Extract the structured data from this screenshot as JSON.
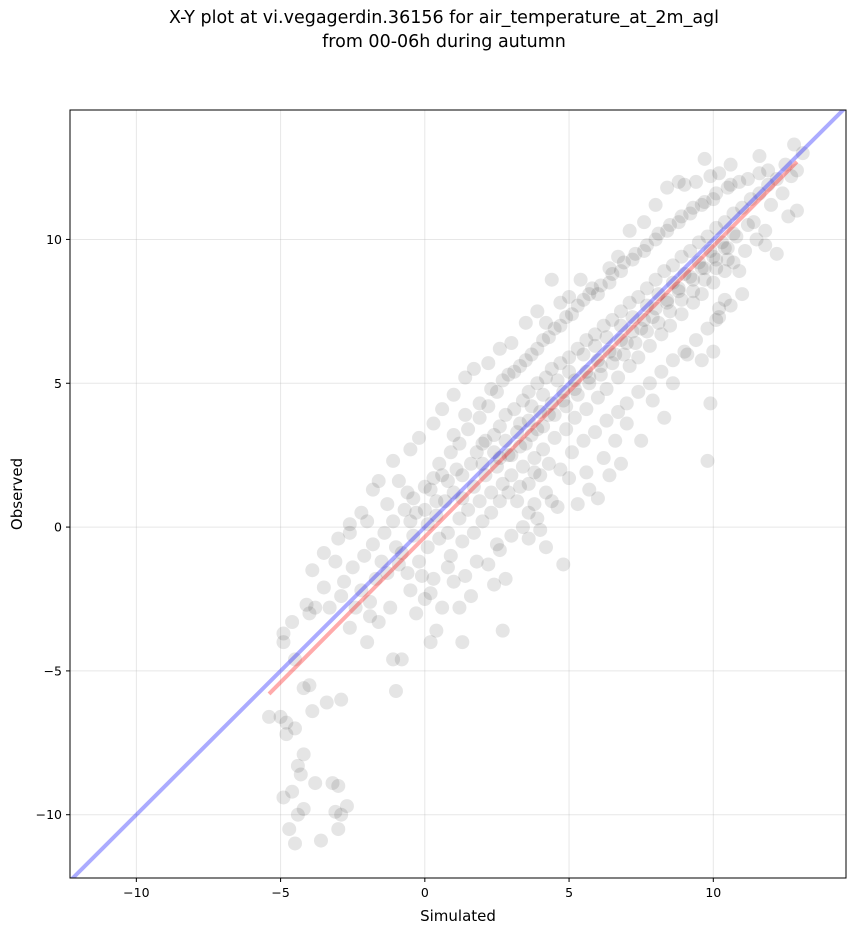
{
  "chart_data": {
    "type": "scatter",
    "title_lines": [
      "X-Y plot at vi.vegagerdin.36156 for air_temperature_at_2m_agl",
      "from 00-06h during autumn"
    ],
    "xlabel": "Simulated",
    "ylabel": "Observed",
    "xlim": [
      -12.3,
      14.6
    ],
    "ylim": [
      -12.2,
      14.5
    ],
    "xticks": [
      -10,
      -5,
      0,
      5,
      10
    ],
    "yticks": [
      -10,
      -5,
      0,
      5,
      10
    ],
    "xtick_labels": [
      "−10",
      "−5",
      "0",
      "5",
      "10"
    ],
    "ytick_labels": [
      "−10",
      "−5",
      "0",
      "5",
      "10"
    ],
    "grid": true,
    "point_color": "#000000",
    "point_alpha": 0.1,
    "reference_line": {
      "color": "#0000ff",
      "alpha": 0.33,
      "slope": 1,
      "intercept": 0
    },
    "fit_line": {
      "color": "#ff0000",
      "alpha": 0.33,
      "x": [
        -5.4,
        12.9
      ],
      "y": [
        -5.8,
        12.7
      ]
    },
    "points": [
      [
        -5.4,
        -6.6
      ],
      [
        -5.0,
        -6.6
      ],
      [
        -4.8,
        -6.8
      ],
      [
        -4.5,
        -7.0
      ],
      [
        -4.8,
        -7.2
      ],
      [
        -4.2,
        -7.9
      ],
      [
        -4.4,
        -8.3
      ],
      [
        -4.3,
        -8.6
      ],
      [
        -4.6,
        -9.2
      ],
      [
        -4.9,
        -9.4
      ],
      [
        -4.2,
        -9.8
      ],
      [
        -4.4,
        -10.0
      ],
      [
        -4.7,
        -10.5
      ],
      [
        -4.5,
        -11.0
      ],
      [
        -3.8,
        -8.9
      ],
      [
        -3.2,
        -8.9
      ],
      [
        -3.0,
        -9.0
      ],
      [
        -3.1,
        -9.9
      ],
      [
        -2.9,
        -10.0
      ],
      [
        -2.7,
        -9.7
      ],
      [
        -3.0,
        -10.5
      ],
      [
        -3.6,
        -10.9
      ],
      [
        -3.9,
        -6.4
      ],
      [
        -3.4,
        -6.1
      ],
      [
        -2.9,
        -6.0
      ],
      [
        -4.0,
        -5.5
      ],
      [
        -4.2,
        -5.6
      ],
      [
        -4.5,
        -4.6
      ],
      [
        -4.9,
        -4.0
      ],
      [
        -4.9,
        -3.7
      ],
      [
        -4.6,
        -3.3
      ],
      [
        -4.1,
        -2.7
      ],
      [
        -3.8,
        -2.8
      ],
      [
        -3.3,
        -2.8
      ],
      [
        -2.6,
        -3.5
      ],
      [
        -2.0,
        -4.0
      ],
      [
        -1.6,
        -3.3
      ],
      [
        -1.1,
        -4.6
      ],
      [
        -0.8,
        -4.6
      ],
      [
        -1.0,
        -5.7
      ],
      [
        -0.3,
        -3.0
      ],
      [
        0.4,
        -3.6
      ],
      [
        0.2,
        -4.0
      ],
      [
        1.3,
        -4.0
      ],
      [
        2.7,
        -3.6
      ],
      [
        1.6,
        -2.4
      ],
      [
        2.4,
        -2.0
      ],
      [
        2.8,
        -1.8
      ],
      [
        3.6,
        -0.4
      ],
      [
        3.9,
        0.3
      ],
      [
        4.6,
        0.7
      ],
      [
        4.2,
        -0.7
      ],
      [
        4.8,
        -1.3
      ],
      [
        5.3,
        0.8
      ],
      [
        6.0,
        1.0
      ],
      [
        5.7,
        1.3
      ],
      [
        6.4,
        1.8
      ],
      [
        6.8,
        2.2
      ],
      [
        7.5,
        3.0
      ],
      [
        8.3,
        3.8
      ],
      [
        9.8,
        2.3
      ],
      [
        9.9,
        4.3
      ],
      [
        10.0,
        6.1
      ],
      [
        10.1,
        7.2
      ],
      [
        10.4,
        7.9
      ],
      [
        9.6,
        5.8
      ],
      [
        12.2,
        9.5
      ],
      [
        12.9,
        11.0
      ],
      [
        12.7,
        12.2
      ],
      [
        12.9,
        12.4
      ],
      [
        13.1,
        13.0
      ],
      [
        12.8,
        13.3
      ],
      [
        12.5,
        12.6
      ],
      [
        11.6,
        12.3
      ],
      [
        11.2,
        12.1
      ],
      [
        10.6,
        11.9
      ],
      [
        10.2,
        12.3
      ],
      [
        9.9,
        12.2
      ],
      [
        9.4,
        12.0
      ],
      [
        9.0,
        11.9
      ],
      [
        8.4,
        11.8
      ],
      [
        8.0,
        11.2
      ],
      [
        7.6,
        10.6
      ],
      [
        7.1,
        10.3
      ],
      [
        6.7,
        9.4
      ],
      [
        6.4,
        9.0
      ],
      [
        5.8,
        8.3
      ],
      [
        5.4,
        8.6
      ],
      [
        4.7,
        7.8
      ],
      [
        4.2,
        7.1
      ],
      [
        3.5,
        7.1
      ],
      [
        3.0,
        6.4
      ],
      [
        2.6,
        6.2
      ],
      [
        2.2,
        5.7
      ],
      [
        1.7,
        5.5
      ],
      [
        1.4,
        5.2
      ],
      [
        1.0,
        4.6
      ],
      [
        0.6,
        4.1
      ],
      [
        0.3,
        3.6
      ],
      [
        -0.2,
        3.1
      ],
      [
        -0.5,
        2.7
      ],
      [
        -1.1,
        2.3
      ],
      [
        -1.6,
        1.6
      ],
      [
        -1.8,
        1.3
      ],
      [
        -2.2,
        0.5
      ],
      [
        -2.6,
        0.1
      ],
      [
        -3.0,
        -0.4
      ],
      [
        -3.5,
        -0.9
      ],
      [
        -3.9,
        -1.5
      ],
      [
        -1.2,
        -2.8
      ],
      [
        -1.9,
        -2.6
      ],
      [
        -0.6,
        -1.6
      ],
      [
        -0.8,
        -0.9
      ],
      [
        -0.4,
        -0.3
      ],
      [
        0.1,
        0.1
      ],
      [
        0.4,
        0.4
      ],
      [
        0.7,
        0.9
      ],
      [
        1.0,
        1.2
      ],
      [
        1.3,
        1.8
      ],
      [
        1.6,
        2.2
      ],
      [
        1.8,
        2.6
      ],
      [
        2.1,
        3.0
      ],
      [
        2.4,
        3.2
      ],
      [
        2.6,
        3.5
      ],
      [
        2.8,
        3.9
      ],
      [
        3.1,
        4.1
      ],
      [
        3.4,
        4.4
      ],
      [
        3.6,
        4.7
      ],
      [
        3.9,
        5.0
      ],
      [
        4.2,
        5.2
      ],
      [
        4.4,
        5.5
      ],
      [
        4.7,
        5.7
      ],
      [
        5.0,
        5.9
      ],
      [
        5.3,
        6.2
      ],
      [
        5.6,
        6.5
      ],
      [
        5.9,
        6.7
      ],
      [
        6.2,
        7.0
      ],
      [
        6.5,
        7.2
      ],
      [
        6.8,
        7.5
      ],
      [
        7.1,
        7.8
      ],
      [
        7.4,
        8.0
      ],
      [
        7.7,
        8.3
      ],
      [
        8.0,
        8.6
      ],
      [
        8.3,
        8.9
      ],
      [
        8.6,
        9.1
      ],
      [
        8.9,
        9.4
      ],
      [
        9.2,
        9.6
      ],
      [
        9.5,
        9.9
      ],
      [
        9.8,
        10.1
      ],
      [
        10.1,
        10.4
      ],
      [
        10.4,
        10.6
      ],
      [
        10.7,
        10.9
      ],
      [
        11.0,
        11.1
      ],
      [
        11.3,
        11.4
      ],
      [
        11.6,
        11.6
      ],
      [
        11.9,
        11.9
      ],
      [
        12.2,
        12.1
      ],
      [
        0.2,
        1.3
      ],
      [
        0.6,
        1.8
      ],
      [
        0.9,
        2.6
      ],
      [
        1.2,
        2.9
      ],
      [
        1.5,
        3.4
      ],
      [
        1.9,
        3.8
      ],
      [
        2.2,
        4.2
      ],
      [
        2.5,
        4.7
      ],
      [
        2.9,
        5.3
      ],
      [
        3.3,
        5.6
      ],
      [
        3.7,
        6.0
      ],
      [
        4.1,
        6.5
      ],
      [
        4.5,
        6.9
      ],
      [
        4.9,
        7.3
      ],
      [
        5.3,
        7.7
      ],
      [
        5.7,
        8.1
      ],
      [
        6.1,
        8.4
      ],
      [
        6.5,
        8.8
      ],
      [
        6.9,
        9.2
      ],
      [
        7.3,
        9.5
      ],
      [
        7.7,
        9.8
      ],
      [
        8.1,
        10.2
      ],
      [
        8.5,
        10.5
      ],
      [
        8.9,
        10.8
      ],
      [
        9.3,
        11.1
      ],
      [
        9.7,
        11.3
      ],
      [
        10.1,
        11.6
      ],
      [
        10.5,
        11.8
      ],
      [
        10.9,
        12.0
      ],
      [
        0.8,
        -0.2
      ],
      [
        1.2,
        0.3
      ],
      [
        1.5,
        0.6
      ],
      [
        1.9,
        0.9
      ],
      [
        2.3,
        1.2
      ],
      [
        2.7,
        1.5
      ],
      [
        3.0,
        1.8
      ],
      [
        3.4,
        2.1
      ],
      [
        3.8,
        2.4
      ],
      [
        4.1,
        2.7
      ],
      [
        4.5,
        3.1
      ],
      [
        4.9,
        3.4
      ],
      [
        5.2,
        3.8
      ],
      [
        5.6,
        4.1
      ],
      [
        6.0,
        4.5
      ],
      [
        6.3,
        4.8
      ],
      [
        6.7,
        5.2
      ],
      [
        7.1,
        5.6
      ],
      [
        7.4,
        5.9
      ],
      [
        7.8,
        6.3
      ],
      [
        8.2,
        6.7
      ],
      [
        8.5,
        7.0
      ],
      [
        8.9,
        7.4
      ],
      [
        9.3,
        7.8
      ],
      [
        9.6,
        8.1
      ],
      [
        10.0,
        8.5
      ],
      [
        10.4,
        8.9
      ],
      [
        10.7,
        9.2
      ],
      [
        11.1,
        9.6
      ],
      [
        11.5,
        10.0
      ],
      [
        11.8,
        10.3
      ],
      [
        -0.2,
        -1.2
      ],
      [
        0.1,
        -0.7
      ],
      [
        0.5,
        -0.4
      ],
      [
        0.9,
        -1.0
      ],
      [
        1.3,
        -0.5
      ],
      [
        1.7,
        -0.2
      ],
      [
        2.0,
        0.2
      ],
      [
        2.3,
        0.5
      ],
      [
        2.6,
        0.9
      ],
      [
        2.9,
        1.2
      ],
      [
        3.2,
        0.9
      ],
      [
        3.6,
        1.5
      ],
      [
        4.0,
        1.8
      ],
      [
        4.3,
        2.2
      ],
      [
        4.7,
        2.0
      ],
      [
        5.1,
        2.6
      ],
      [
        5.5,
        3.0
      ],
      [
        5.9,
        3.3
      ],
      [
        6.3,
        3.7
      ],
      [
        6.7,
        4.0
      ],
      [
        7.0,
        4.3
      ],
      [
        7.4,
        4.7
      ],
      [
        7.8,
        5.0
      ],
      [
        8.2,
        5.4
      ],
      [
        8.6,
        5.8
      ],
      [
        9.0,
        6.1
      ],
      [
        9.4,
        6.5
      ],
      [
        9.8,
        6.9
      ],
      [
        10.2,
        7.3
      ],
      [
        10.6,
        7.7
      ],
      [
        11.0,
        8.1
      ],
      [
        -2.8,
        -1.9
      ],
      [
        -2.5,
        -1.4
      ],
      [
        -2.1,
        -1.0
      ],
      [
        -1.8,
        -0.6
      ],
      [
        -1.4,
        -0.2
      ],
      [
        -1.1,
        0.2
      ],
      [
        -0.7,
        0.6
      ],
      [
        -0.4,
        1.0
      ],
      [
        0.0,
        1.4
      ],
      [
        0.3,
        1.7
      ],
      [
        -1.5,
        -1.2
      ],
      [
        -1.0,
        -0.7
      ],
      [
        -0.5,
        0.2
      ],
      [
        0.0,
        0.6
      ],
      [
        0.4,
        0.9
      ],
      [
        -2.2,
        -2.2
      ],
      [
        -1.7,
        -1.8
      ],
      [
        -1.3,
        -1.6
      ],
      [
        -0.9,
        -1.3
      ],
      [
        -0.5,
        -2.2
      ],
      [
        0.0,
        -2.5
      ],
      [
        0.3,
        -1.8
      ],
      [
        0.8,
        -1.4
      ],
      [
        1.2,
        -2.8
      ],
      [
        2.2,
        -1.3
      ],
      [
        2.6,
        -0.8
      ],
      [
        3.0,
        -0.3
      ],
      [
        3.4,
        0.0
      ],
      [
        3.8,
        0.8
      ],
      [
        4.2,
        1.2
      ],
      [
        1.0,
        3.2
      ],
      [
        1.4,
        3.9
      ],
      [
        1.9,
        4.3
      ],
      [
        2.3,
        4.8
      ],
      [
        2.7,
        5.1
      ],
      [
        3.1,
        5.4
      ],
      [
        3.5,
        5.8
      ],
      [
        3.9,
        6.2
      ],
      [
        4.3,
        6.6
      ],
      [
        4.7,
        7.0
      ],
      [
        5.1,
        7.4
      ],
      [
        5.5,
        7.9
      ],
      [
        6.0,
        8.1
      ],
      [
        6.4,
        8.5
      ],
      [
        6.8,
        8.9
      ],
      [
        7.2,
        9.3
      ],
      [
        7.6,
        9.6
      ],
      [
        8.0,
        10.0
      ],
      [
        8.4,
        10.3
      ],
      [
        8.8,
        10.6
      ],
      [
        9.2,
        10.9
      ],
      [
        9.6,
        11.2
      ],
      [
        10.0,
        11.4
      ],
      [
        2.0,
        2.2
      ],
      [
        2.4,
        2.6
      ],
      [
        2.8,
        3.0
      ],
      [
        3.2,
        3.3
      ],
      [
        3.6,
        3.7
      ],
      [
        4.0,
        4.0
      ],
      [
        4.4,
        4.3
      ],
      [
        4.8,
        4.7
      ],
      [
        5.2,
        5.1
      ],
      [
        5.6,
        5.4
      ],
      [
        6.0,
        5.8
      ],
      [
        6.4,
        6.1
      ],
      [
        6.8,
        6.5
      ],
      [
        7.2,
        6.8
      ],
      [
        7.6,
        7.2
      ],
      [
        8.0,
        7.6
      ],
      [
        8.4,
        7.9
      ],
      [
        8.8,
        8.3
      ],
      [
        9.2,
        8.7
      ],
      [
        9.6,
        9.0
      ],
      [
        10.0,
        9.4
      ],
      [
        10.4,
        9.7
      ],
      [
        10.8,
        10.1
      ],
      [
        11.2,
        10.5
      ],
      [
        1.3,
        1.0
      ],
      [
        1.7,
        1.4
      ],
      [
        2.1,
        1.8
      ],
      [
        2.5,
        2.1
      ],
      [
        2.9,
        2.5
      ],
      [
        3.3,
        2.8
      ],
      [
        3.7,
        3.2
      ],
      [
        4.1,
        3.5
      ],
      [
        4.5,
        3.9
      ],
      [
        4.9,
        4.2
      ],
      [
        5.3,
        4.6
      ],
      [
        5.7,
        5.0
      ],
      [
        6.1,
        5.3
      ],
      [
        6.5,
        5.7
      ],
      [
        6.9,
        6.0
      ],
      [
        7.3,
        6.4
      ],
      [
        7.7,
        6.8
      ],
      [
        8.1,
        7.1
      ],
      [
        8.5,
        7.5
      ],
      [
        8.9,
        7.9
      ],
      [
        9.3,
        8.2
      ],
      [
        9.7,
        8.6
      ],
      [
        10.1,
        9.0
      ],
      [
        10.5,
        9.3
      ],
      [
        3.0,
        2.5
      ],
      [
        3.3,
        3.6
      ],
      [
        3.5,
        2.9
      ],
      [
        3.7,
        4.2
      ],
      [
        3.9,
        3.4
      ],
      [
        4.1,
        4.6
      ],
      [
        4.3,
        3.9
      ],
      [
        4.6,
        5.1
      ],
      [
        4.8,
        4.4
      ],
      [
        5.0,
        5.4
      ],
      [
        5.2,
        4.8
      ],
      [
        5.5,
        6.0
      ],
      [
        5.7,
        5.2
      ],
      [
        5.9,
        6.3
      ],
      [
        6.1,
        5.6
      ],
      [
        6.3,
        6.6
      ],
      [
        6.6,
        6.0
      ],
      [
        6.8,
        7.0
      ],
      [
        7.0,
        6.4
      ],
      [
        7.2,
        7.3
      ],
      [
        7.5,
        6.9
      ],
      [
        7.7,
        7.7
      ],
      [
        7.9,
        7.3
      ],
      [
        8.1,
        8.1
      ],
      [
        8.4,
        7.8
      ],
      [
        8.6,
        8.5
      ],
      [
        8.8,
        8.2
      ],
      [
        9.0,
        8.8
      ],
      [
        9.3,
        8.6
      ],
      [
        9.5,
        9.2
      ],
      [
        9.7,
        9.0
      ],
      [
        9.9,
        9.6
      ],
      [
        10.1,
        9.3
      ],
      [
        10.3,
        9.9
      ],
      [
        10.5,
        9.7
      ],
      [
        10.7,
        10.2
      ],
      [
        3.3,
        1.4
      ],
      [
        3.8,
        1.9
      ],
      [
        2.6,
        2.4
      ],
      [
        2.0,
        2.9
      ],
      [
        1.1,
        2.0
      ],
      [
        0.8,
        1.6
      ],
      [
        0.5,
        2.2
      ],
      [
        -0.3,
        0.5
      ],
      [
        -0.6,
        1.2
      ],
      [
        -2.6,
        -0.2
      ],
      [
        -3.1,
        -1.2
      ],
      [
        -2.4,
        -2.8
      ],
      [
        -1.9,
        -3.1
      ],
      [
        -2.9,
        -2.4
      ],
      [
        -3.5,
        -2.1
      ],
      [
        -4.0,
        -3.0
      ],
      [
        -2.0,
        0.2
      ],
      [
        -1.3,
        0.8
      ],
      [
        -0.9,
        1.6
      ],
      [
        4.4,
        8.6
      ],
      [
        5.0,
        8.0
      ],
      [
        3.9,
        7.5
      ],
      [
        8.8,
        12.0
      ],
      [
        9.7,
        12.8
      ],
      [
        10.6,
        12.6
      ],
      [
        11.6,
        12.9
      ],
      [
        11.9,
        12.4
      ],
      [
        12.4,
        11.6
      ],
      [
        12.6,
        10.8
      ],
      [
        12.0,
        11.2
      ],
      [
        11.4,
        10.6
      ],
      [
        11.8,
        9.8
      ],
      [
        10.9,
        8.9
      ],
      [
        10.2,
        7.6
      ],
      [
        9.1,
        6.0
      ],
      [
        8.6,
        5.0
      ],
      [
        7.9,
        4.4
      ],
      [
        7.0,
        3.6
      ],
      [
        6.6,
        3.0
      ],
      [
        6.2,
        2.4
      ],
      [
        5.6,
        1.9
      ],
      [
        5.0,
        1.7
      ],
      [
        4.4,
        0.9
      ],
      [
        4.0,
        -0.1
      ],
      [
        3.6,
        0.5
      ],
      [
        2.5,
        -0.6
      ],
      [
        1.8,
        -1.2
      ],
      [
        1.4,
        -1.7
      ],
      [
        1.0,
        -1.9
      ],
      [
        0.6,
        -2.8
      ],
      [
        0.2,
        -2.3
      ],
      [
        -0.1,
        -1.7
      ]
    ]
  }
}
